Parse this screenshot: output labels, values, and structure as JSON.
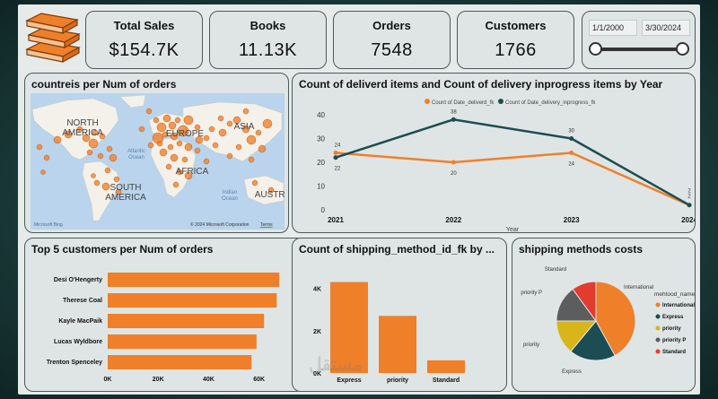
{
  "colors": {
    "orange": "#f07f2a",
    "teal": "#1b4d52",
    "gold": "#d9b41a",
    "gray": "#5b5d5e",
    "red": "#e33b30"
  },
  "logo": {
    "icon": "books-icon"
  },
  "kpis": [
    {
      "title": "Total Sales",
      "value": "$154.7K"
    },
    {
      "title": "Books",
      "value": "11.13K"
    },
    {
      "title": "Orders",
      "value": "7548"
    },
    {
      "title": "Customers",
      "value": "1766"
    }
  ],
  "date_slicer": {
    "start": "1/1/2000",
    "end": "3/30/2024",
    "start_fraction": 0.0,
    "end_fraction": 1.0
  },
  "map_panel": {
    "title": "countreis per Num of orders",
    "labels": {
      "north_america": "NORTH\nAMERICA",
      "south_america": "SOUTH\nAMERICA",
      "europe": "EUROPE",
      "asia": "ASIA",
      "africa": "AFRICA",
      "australia": "AUSTRA",
      "atlantic": "Atlantic\nOcean",
      "indian": "Indian\nOcean"
    },
    "attribution": "© 2024 Microsoft Corporation",
    "terms": "Terms",
    "brand": "Microsoft Bing"
  },
  "line_panel": {
    "title": "Count of deliverd items and Count of delivery inprogress items by Year",
    "chart_data": {
      "type": "line",
      "x": [
        "2021",
        "2022",
        "2023",
        "2024"
      ],
      "series": [
        {
          "name": "Count of Date_deliverd_fk",
          "values": [
            24,
            20,
            24,
            2
          ]
        },
        {
          "name": "Count of Date_delivery_inprogress_fk",
          "values": [
            22,
            38,
            30,
            2
          ]
        }
      ],
      "xlabel": "Year",
      "yticks": [
        "0",
        "10",
        "20",
        "30",
        "40"
      ],
      "ylim": [
        0,
        40
      ]
    }
  },
  "customers_panel": {
    "title": "Top 5 customers per Num of orders",
    "chart_data": {
      "type": "bar",
      "orientation": "horizontal",
      "categories": [
        "Desi O'Hengerty",
        "Therese Coal",
        "Kayle MacPaik",
        "Lucas Wyldbore",
        "Trenton Spenceley"
      ],
      "values": [
        68000,
        67000,
        62000,
        59000,
        57000
      ],
      "xticks": [
        "0K",
        "20K",
        "40K",
        "60K"
      ],
      "xlim": [
        0,
        74000
      ]
    }
  },
  "shipping_count_panel": {
    "title": "Count of shipping_method_id_fk by ...",
    "chart_data": {
      "type": "bar",
      "categories": [
        "Express",
        "priority",
        "Standard"
      ],
      "values": [
        4300,
        2700,
        600
      ],
      "yticks": [
        "0K",
        "2K",
        "4K"
      ],
      "ylim": [
        0,
        5000
      ]
    }
  },
  "shipping_cost_panel": {
    "title": "shipping methods costs",
    "legend_title": "mehtood_name",
    "chart_data": {
      "type": "pie",
      "categories": [
        "International",
        "Express",
        "priority",
        "priority P",
        "Standard"
      ],
      "values": [
        42,
        19,
        14,
        15,
        10
      ]
    }
  },
  "watermark": "مستقل"
}
